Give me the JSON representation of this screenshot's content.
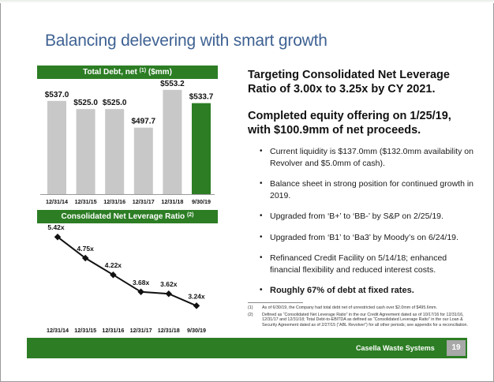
{
  "slide": {
    "title": "Balancing delevering with smart growth",
    "footer_company": "Casella Waste Systems",
    "page_number": "19",
    "colors": {
      "brand_green": "#2c7d24",
      "title_blue": "#3f6293",
      "bar_gray": "#c8c8c8",
      "page_box": "#a8a8a8"
    }
  },
  "debt_panel": {
    "header_pre": "Total Debt, net ",
    "header_sup": "(1)",
    "header_post": " ($mm)"
  },
  "leverage_panel": {
    "header_pre": "Consolidated Net Leverage Ratio ",
    "header_sup": "(2)"
  },
  "chart_data": [
    {
      "type": "bar",
      "title": "Total Debt, net (1) ($mm)",
      "categories": [
        "12/31/14",
        "12/31/15",
        "12/31/16",
        "12/31/17",
        "12/31/18",
        "9/30/19"
      ],
      "values": [
        537.0,
        525.0,
        525.0,
        497.7,
        553.2,
        533.7
      ],
      "labels": [
        "$537.0",
        "$525.0",
        "$525.0",
        "$497.7",
        "$553.2",
        "$533.7"
      ],
      "highlight_index": 5,
      "ylim": [
        400,
        560
      ]
    },
    {
      "type": "line",
      "title": "Consolidated Net Leverage Ratio (2)",
      "categories": [
        "12/31/14",
        "12/31/15",
        "12/31/16",
        "12/31/17",
        "12/31/18",
        "9/30/19"
      ],
      "values": [
        5.42,
        4.75,
        4.22,
        3.68,
        3.62,
        3.24
      ],
      "labels": [
        "5.42x",
        "4.75x",
        "4.22x",
        "3.68x",
        "3.62x",
        "3.24x"
      ],
      "ylim": [
        3.0,
        5.6
      ]
    }
  ],
  "right": {
    "headline1": "Targeting Consolidated Net Leverage Ratio of 3.00x to 3.25x by CY 2021.",
    "headline2": "Completed equity offering on 1/25/19, with $100.9mm of net proceeds.",
    "bullets": [
      "Current liquidity is $137.0mm ($132.0mm availability on Revolver and $5.0mm of cash).",
      "Balance sheet in strong position for continued growth in 2019.",
      "Upgraded from ‘B+’ to ‘BB-’ by S&P on 2/25/19.",
      "Upgraded from ‘B1’ to ‘Ba3’ by Moody’s on 6/24/19.",
      "Refinanced Credit Facility on 5/14/18; enhanced financial flexibility and reduced interest costs.",
      "Roughly 67% of debt at fixed rates."
    ],
    "bullet_char": "•"
  },
  "footnotes": [
    {
      "num": "(1)",
      "text": "As of 6/30/19, the Company had total debt net of unrestricted cash over $2.0mm of $495.6mm."
    },
    {
      "num": "(2)",
      "text": "Defined as “Consolidated Net Leverage Ratio” in the our Credit Agreement dated as of 10/17/16 for 12/31/16, 12/31/17 and 12/31/18; Total Debt-to-EBITDA as defined as “Consolidated Leverage Ratio” in the our Loan & Security Agreement dated as of 2/27/15 (“ABL Revolver”) for all other periods; see appendix for a reconciliation."
    }
  ]
}
